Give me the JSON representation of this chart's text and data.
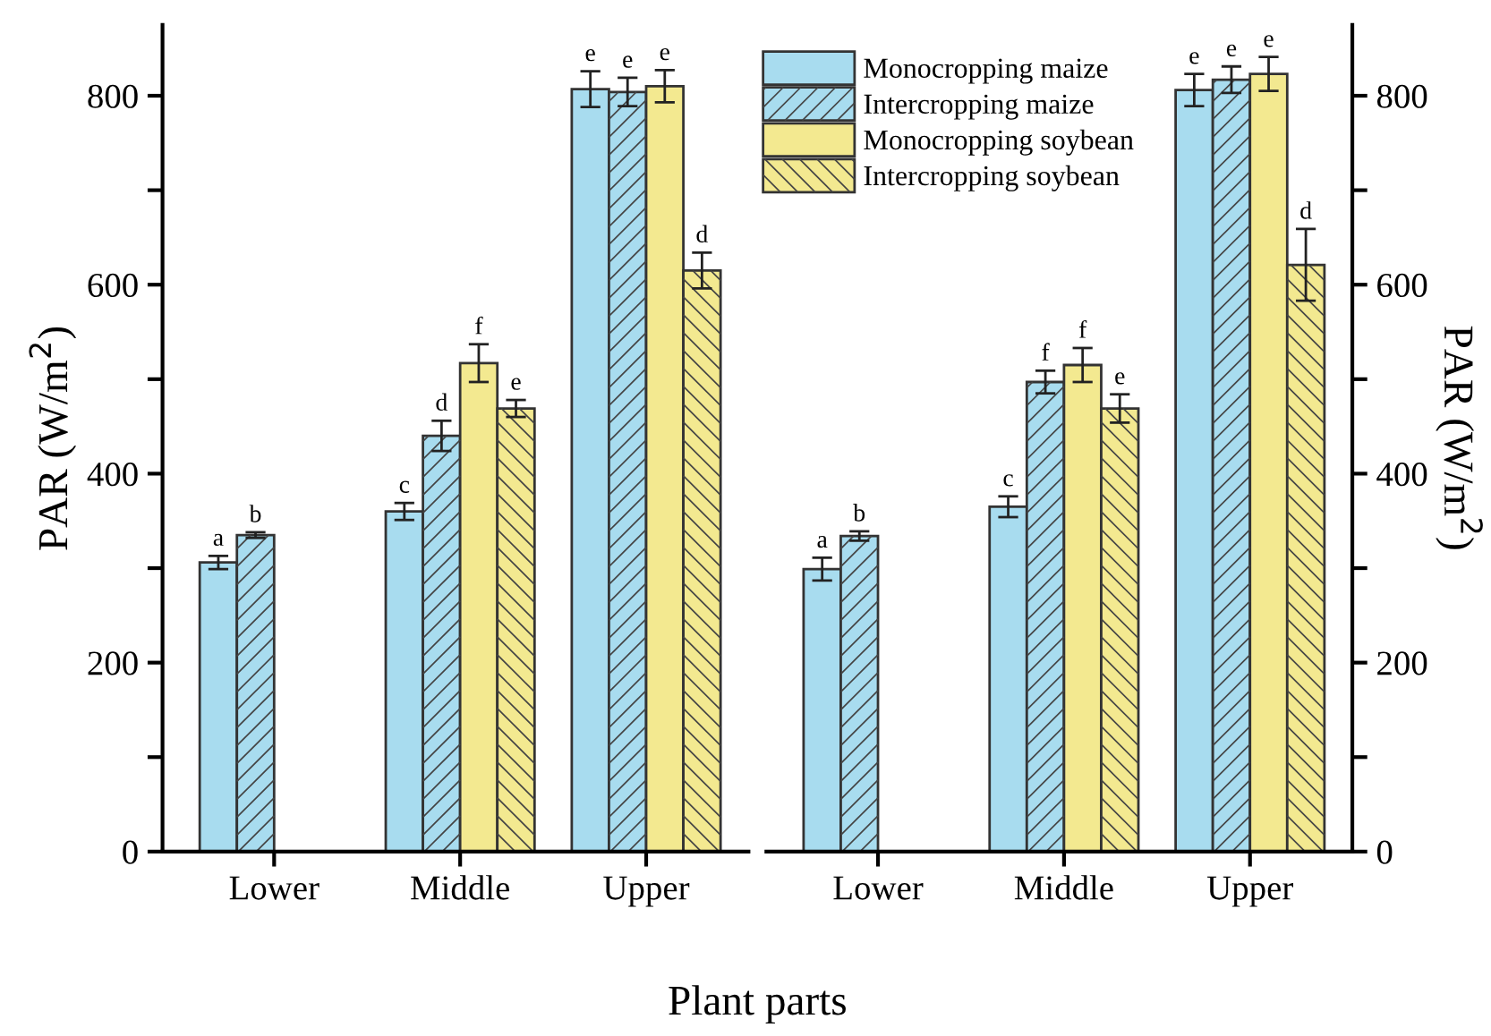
{
  "chart_data": [
    {
      "type": "bar",
      "xlabel": "Plant parts",
      "ylabel": "PAR (W/m$^{2}$)",
      "categories": [
        "Lower",
        "Middle",
        "Upper"
      ],
      "ylim": [
        0,
        875
      ],
      "yticks": [
        0,
        {
          "value": 100,
          "label": null
        },
        200,
        {
          "value": 300,
          "label": null
        },
        400,
        {
          "value": 500,
          "label": null
        },
        600,
        {
          "value": 700,
          "label": null
        },
        800
      ],
      "legend": false,
      "grid": false,
      "series": [
        {
          "color": "#a8dcef",
          "values": [
            306,
            360,
            807
          ],
          "errors": [
            7,
            9,
            19
          ],
          "value_labels": [
            "a",
            "c",
            "e"
          ]
        },
        {
          "color": "#a8dcef",
          "values": [
            335,
            440,
            804
          ],
          "errors": [
            3,
            16,
            15
          ],
          "value_labels": [
            "b",
            "d",
            "e"
          ]
        },
        {
          "color": "#f3e990",
          "values": [
            null,
            517,
            810
          ],
          "errors": [
            null,
            20,
            17
          ],
          "value_labels": [
            null,
            "f",
            "e"
          ]
        },
        {
          "color": "#f3e990",
          "values": [
            null,
            469,
            615
          ],
          "errors": [
            null,
            9,
            19
          ],
          "value_labels": [
            null,
            "e",
            "d"
          ]
        }
      ]
    },
    {
      "type": "bar",
      "y2label": "PAR (W/m$^{2}$)",
      "categories": [
        "Lower",
        "Middle",
        "Upper"
      ],
      "y2lim": [
        0,
        875
      ],
      "y2ticks": [
        0,
        {
          "value": 100,
          "label": null
        },
        200,
        {
          "value": 300,
          "label": null
        },
        400,
        {
          "value": 500,
          "label": null
        },
        600,
        {
          "value": 700,
          "label": null
        },
        800
      ],
      "legend": "top left",
      "grid": false,
      "series": [
        {
          "name": "Monocropping maize",
          "color": "#a8dcef",
          "axis": "y2",
          "values": [
            299,
            365,
            806
          ],
          "errors": [
            12,
            11,
            17
          ],
          "value_labels": [
            "a",
            "c",
            "e"
          ]
        },
        {
          "name": "Intercropping maize",
          "color": "#a8dcef",
          "axis": "y2",
          "values": [
            334,
            497,
            817
          ],
          "errors": [
            5,
            12,
            14
          ],
          "value_labels": [
            "b",
            "f",
            "e"
          ]
        },
        {
          "name": "Monocropping soybean",
          "color": "#f3e990",
          "axis": "y2",
          "values": [
            null,
            515,
            823
          ],
          "errors": [
            null,
            18,
            18
          ],
          "value_labels": [
            null,
            "f",
            "e"
          ]
        },
        {
          "name": "Intercropping soybean",
          "color": "#f3e990",
          "axis": "y2",
          "values": [
            null,
            469,
            621
          ],
          "errors": [
            null,
            15,
            38
          ],
          "value_labels": [
            null,
            "e",
            "d"
          ]
        }
      ]
    }
  ]
}
